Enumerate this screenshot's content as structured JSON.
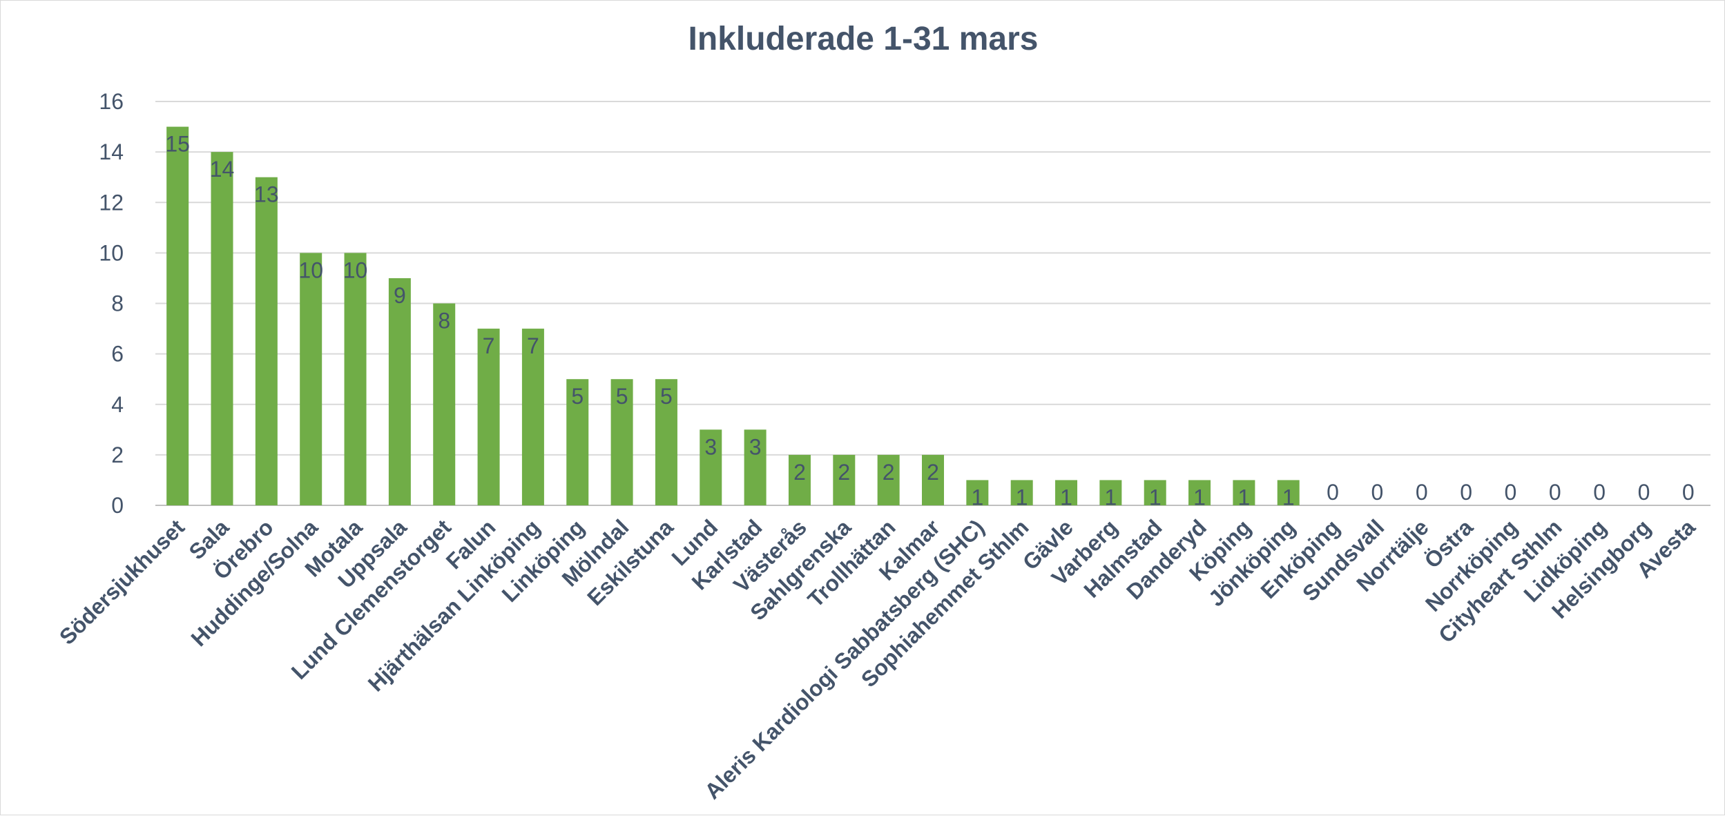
{
  "chart_data": {
    "type": "bar",
    "title": "Inkluderade 1-31 mars",
    "xlabel": "",
    "ylabel": "",
    "ylim": [
      0,
      16
    ],
    "yticks": [
      0,
      2,
      4,
      6,
      8,
      10,
      12,
      14,
      16
    ],
    "grid": true,
    "legend": "none",
    "bar_color": "#70ad47",
    "text_color": "#44546a",
    "categories": [
      "Södersjukhuset",
      "Sala",
      "Örebro",
      "Huddinge/Solna",
      "Motala",
      "Uppsala",
      "Lund Clemenstorget",
      "Falun",
      "Hjärthälsan Linköping",
      "Linköping",
      "Mölndal",
      "Eskilstuna",
      "Lund",
      "Karlstad",
      "Västerås",
      "Sahlgrenska",
      "Trollhättan",
      "Kalmar",
      "Aleris Kardiologi Sabbatsberg (SHC)",
      "Sophiahemmet Sthlm",
      "Gävle",
      "Varberg",
      "Halmstad",
      "Danderyd",
      "Köping",
      "Jönköping",
      "Enköping",
      "Sundsvall",
      "Norrtälje",
      "Östra",
      "Norrköping",
      "Cityheart Sthlm",
      "Lidköping",
      "Helsingborg",
      "Avesta"
    ],
    "values": [
      15,
      14,
      13,
      10,
      10,
      9,
      8,
      7,
      7,
      5,
      5,
      5,
      3,
      3,
      2,
      2,
      2,
      2,
      1,
      1,
      1,
      1,
      1,
      1,
      1,
      1,
      0,
      0,
      0,
      0,
      0,
      0,
      0,
      0,
      0
    ]
  }
}
